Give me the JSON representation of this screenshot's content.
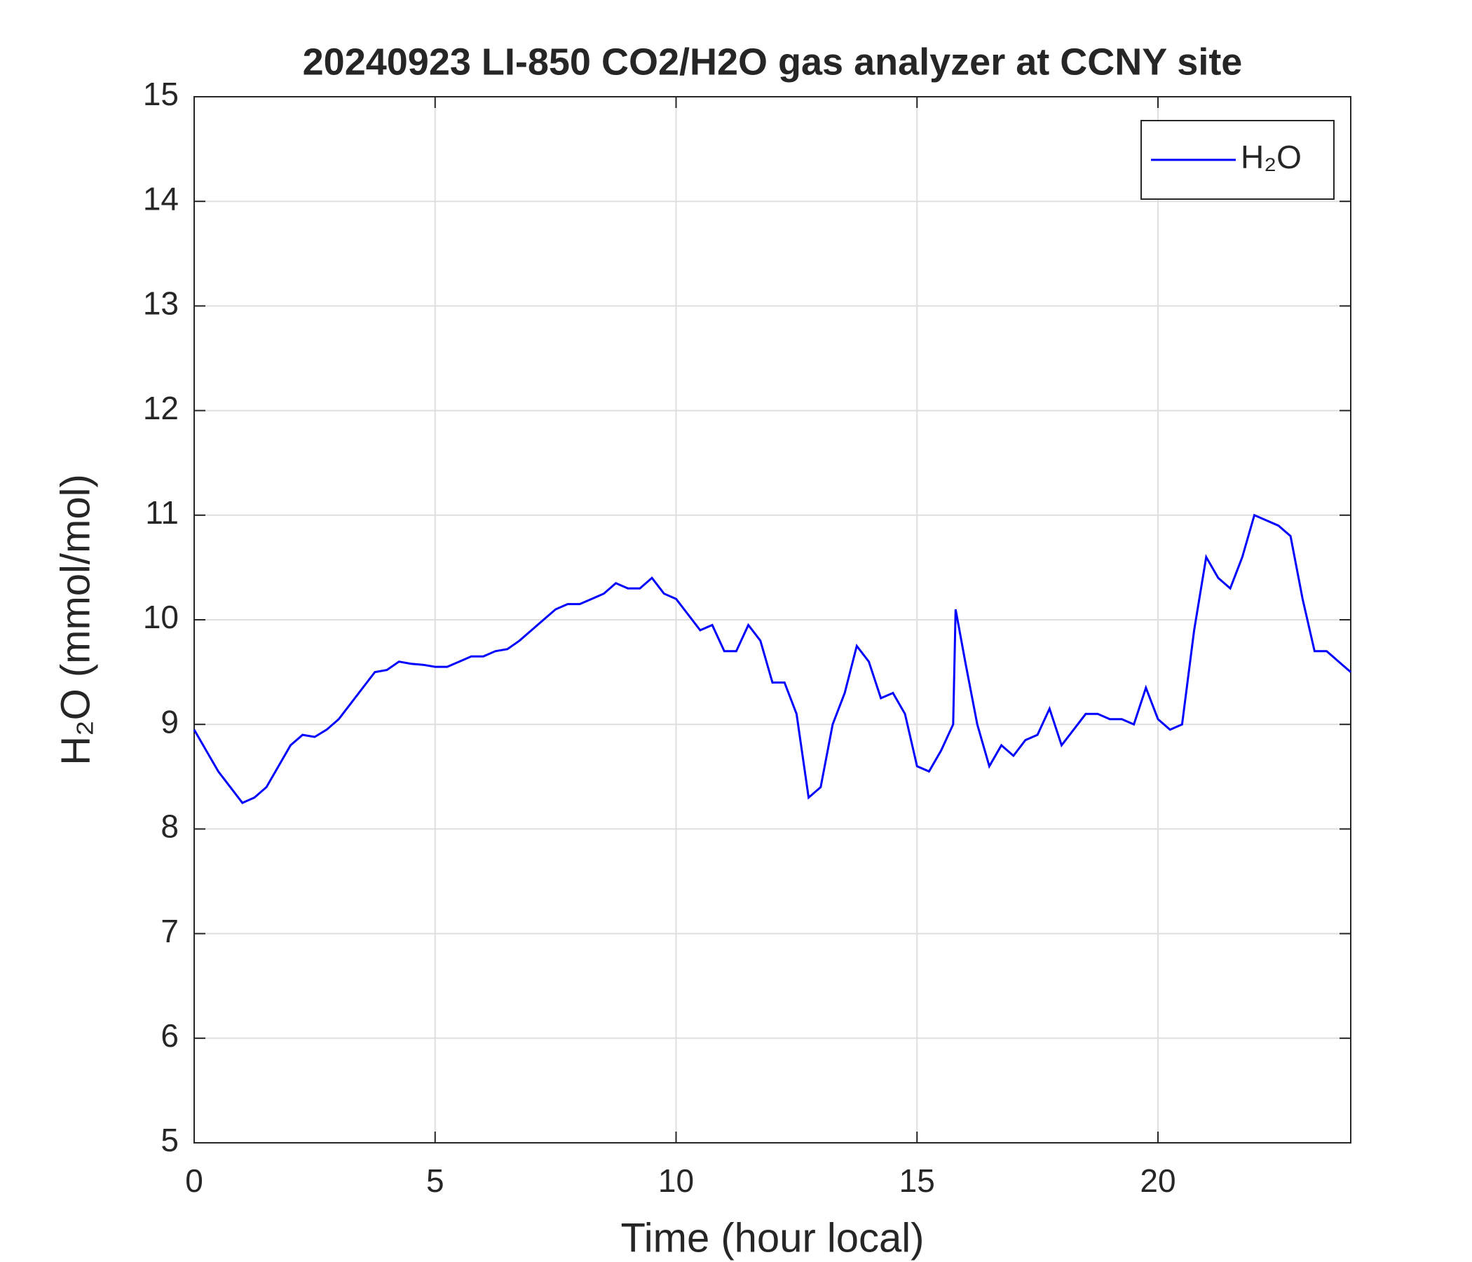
{
  "chart_data": {
    "type": "line",
    "title": "20240923 LI-850 CO2/H2O gas analyzer at CCNY site",
    "xlabel": "Time (hour local)",
    "ylabel": "H₂O (mmol/mol)",
    "x": [
      0,
      0.25,
      0.5,
      0.75,
      1,
      1.25,
      1.5,
      1.75,
      2,
      2.25,
      2.5,
      2.75,
      3,
      3.25,
      3.5,
      3.75,
      4,
      4.25,
      4.5,
      4.75,
      5,
      5.25,
      5.5,
      5.75,
      6,
      6.25,
      6.5,
      6.75,
      7,
      7.25,
      7.5,
      7.75,
      8,
      8.25,
      8.5,
      8.75,
      9,
      9.25,
      9.5,
      9.75,
      10,
      10.25,
      10.5,
      10.75,
      11,
      11.25,
      11.5,
      11.75,
      12,
      12.25,
      12.5,
      12.75,
      13,
      13.25,
      13.5,
      13.75,
      14,
      14.25,
      14.5,
      14.75,
      15,
      15.25,
      15.5,
      15.75,
      15.8,
      16,
      16.25,
      16.5,
      16.75,
      17,
      17.25,
      17.5,
      17.75,
      18,
      18.25,
      18.5,
      18.75,
      19,
      19.25,
      19.5,
      19.75,
      20,
      20.25,
      20.5,
      20.75,
      21,
      21.25,
      21.5,
      21.75,
      22,
      22.25,
      22.5,
      22.75,
      23,
      23.25,
      23.5,
      23.75,
      24
    ],
    "series": [
      {
        "name": "H₂O",
        "color": "#0000ff",
        "values": [
          8.95,
          8.75,
          8.55,
          8.4,
          8.25,
          8.3,
          8.4,
          8.6,
          8.8,
          8.9,
          8.88,
          8.95,
          9.05,
          9.2,
          9.35,
          9.5,
          9.52,
          9.6,
          9.58,
          9.57,
          9.55,
          9.55,
          9.6,
          9.65,
          9.65,
          9.7,
          9.72,
          9.8,
          9.9,
          10.0,
          10.1,
          10.15,
          10.15,
          10.2,
          10.25,
          10.35,
          10.3,
          10.3,
          10.4,
          10.25,
          10.2,
          10.05,
          9.9,
          9.95,
          9.7,
          9.7,
          9.95,
          9.8,
          9.4,
          9.4,
          9.1,
          8.3,
          8.4,
          9.0,
          9.3,
          9.75,
          9.6,
          9.25,
          9.3,
          9.1,
          8.6,
          8.55,
          8.75,
          9.0,
          10.1,
          9.6,
          9.0,
          8.6,
          8.8,
          8.7,
          8.85,
          8.9,
          9.15,
          8.8,
          8.95,
          9.1,
          9.1,
          9.05,
          9.05,
          9.0,
          9.35,
          9.05,
          8.95,
          9.0,
          9.9,
          10.6,
          10.4,
          10.3,
          10.6,
          11.0,
          10.95,
          10.9,
          10.8,
          10.2,
          9.7,
          9.7,
          9.6,
          9.5
        ]
      }
    ],
    "xlim": [
      0,
      24
    ],
    "xticks": [
      0,
      5,
      10,
      15,
      20
    ],
    "ylim": [
      5,
      15
    ],
    "yticks": [
      5,
      6,
      7,
      8,
      9,
      10,
      11,
      12,
      13,
      14,
      15
    ],
    "grid": true,
    "legend": "northeast"
  }
}
